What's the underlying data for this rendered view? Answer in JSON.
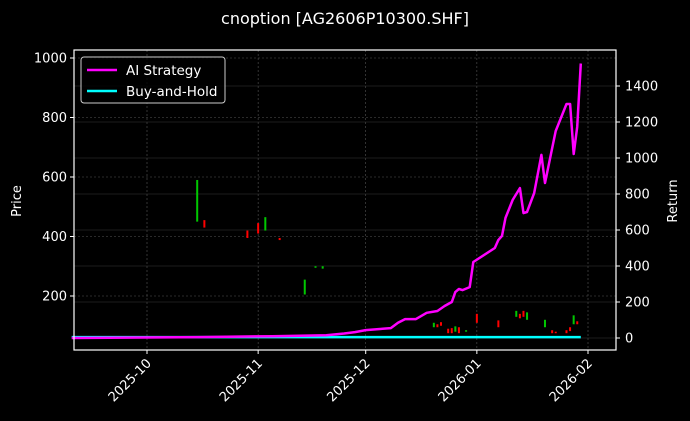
{
  "figure": {
    "title": "cnoption [AG2606P10300.SHF]",
    "background": "#000000"
  },
  "chart_data": {
    "type": "line",
    "title": "cnoption [AG2606P10300.SHF]",
    "xlabel": "",
    "ylabel": "Price",
    "ylabel_right": "Return",
    "grid": true,
    "legend_position": "upper left",
    "x_ticks": [
      "2025-10",
      "2025-11",
      "2025-12",
      "2026-01",
      "2026-02"
    ],
    "y_ticks_left": [
      200,
      400,
      600,
      800,
      1000
    ],
    "y_ticks_right": [
      0,
      200,
      400,
      600,
      800,
      1000,
      1200,
      1400
    ],
    "ylim_left": [
      32,
      1024
    ],
    "ylim_right": [
      -70,
      1600
    ],
    "colors": {
      "ai_strategy": "#ff00ff",
      "buy_and_hold": "#00ffff",
      "up_candle": "#00c800",
      "down_candle": "#ff0000",
      "grid": "#555555",
      "axes": "#ffffff"
    },
    "legend": [
      {
        "label": "AI Strategy",
        "color": "#ff00ff"
      },
      {
        "label": "Buy-and-Hold",
        "color": "#00ffff"
      }
    ],
    "series": [
      {
        "name": "AI Strategy",
        "axis": "right",
        "x": [
          "2025-09-10",
          "2025-10-15",
          "2025-11-05",
          "2025-11-20",
          "2025-11-25",
          "2025-11-28",
          "2025-12-01",
          "2025-12-05",
          "2025-12-08",
          "2025-12-10",
          "2025-12-12",
          "2025-12-15",
          "2025-12-18",
          "2025-12-21",
          "2025-12-23",
          "2025-12-25",
          "2025-12-26",
          "2025-12-27",
          "2025-12-28",
          "2025-12-30",
          "2025-12-31",
          "2026-01-06",
          "2026-01-07",
          "2026-01-08",
          "2026-01-09",
          "2026-01-11",
          "2026-01-13",
          "2026-01-14",
          "2026-01-15",
          "2026-01-17",
          "2026-01-19",
          "2026-01-20",
          "2026-01-23",
          "2026-01-26",
          "2026-01-27",
          "2026-01-28",
          "2026-01-29",
          "2026-01-30"
        ],
        "values": [
          0,
          5,
          10,
          15,
          25,
          33,
          44,
          50,
          55,
          85,
          105,
          105,
          140,
          150,
          178,
          200,
          255,
          272,
          266,
          283,
          422,
          500,
          545,
          567,
          667,
          767,
          833,
          694,
          700,
          806,
          1017,
          861,
          1150,
          1300,
          1300,
          1022,
          1172,
          1525
        ]
      },
      {
        "name": "Buy-and-Hold",
        "axis": "right",
        "x": [
          "2025-09-10",
          "2026-01-30"
        ],
        "values": [
          5,
          5
        ]
      }
    ],
    "candles": [
      {
        "date": "2025-10-15",
        "open": 450,
        "close": 590,
        "dir": "up"
      },
      {
        "date": "2025-10-17",
        "open": 455,
        "close": 430,
        "dir": "down"
      },
      {
        "date": "2025-10-29",
        "open": 420,
        "close": 395,
        "dir": "down"
      },
      {
        "date": "2025-11-01",
        "open": 445,
        "close": 410,
        "dir": "down"
      },
      {
        "date": "2025-11-03",
        "open": 420,
        "close": 465,
        "dir": "up"
      },
      {
        "date": "2025-11-07",
        "open": 395,
        "close": 388,
        "dir": "down"
      },
      {
        "date": "2025-11-14",
        "open": 205,
        "close": 255,
        "dir": "up"
      },
      {
        "date": "2025-11-17",
        "open": 295,
        "close": 300,
        "dir": "up"
      },
      {
        "date": "2025-11-19",
        "open": 292,
        "close": 300,
        "dir": "up"
      },
      {
        "date": "2025-12-20",
        "open": 95,
        "close": 110,
        "dir": "up"
      },
      {
        "date": "2025-12-21",
        "open": 105,
        "close": 95,
        "dir": "down"
      },
      {
        "date": "2025-12-22",
        "open": 112,
        "close": 100,
        "dir": "down"
      },
      {
        "date": "2025-12-24",
        "open": 90,
        "close": 75,
        "dir": "down"
      },
      {
        "date": "2025-12-25",
        "open": 92,
        "close": 75,
        "dir": "down"
      },
      {
        "date": "2025-12-26",
        "open": 80,
        "close": 98,
        "dir": "up"
      },
      {
        "date": "2025-12-27",
        "open": 95,
        "close": 75,
        "dir": "down"
      },
      {
        "date": "2025-12-29",
        "open": 80,
        "close": 85,
        "dir": "up"
      },
      {
        "date": "2026-01-01",
        "open": 140,
        "close": 110,
        "dir": "down"
      },
      {
        "date": "2026-01-07",
        "open": 118,
        "close": 95,
        "dir": "down"
      },
      {
        "date": "2026-01-12",
        "open": 130,
        "close": 150,
        "dir": "up"
      },
      {
        "date": "2026-01-13",
        "open": 140,
        "close": 125,
        "dir": "down"
      },
      {
        "date": "2026-01-14",
        "open": 150,
        "close": 130,
        "dir": "down"
      },
      {
        "date": "2026-01-15",
        "open": 120,
        "close": 145,
        "dir": "up"
      },
      {
        "date": "2026-01-20",
        "open": 95,
        "close": 120,
        "dir": "up"
      },
      {
        "date": "2026-01-22",
        "open": 85,
        "close": 75,
        "dir": "down"
      },
      {
        "date": "2026-01-23",
        "open": 80,
        "close": 75,
        "dir": "down"
      },
      {
        "date": "2026-01-26",
        "open": 85,
        "close": 75,
        "dir": "down"
      },
      {
        "date": "2026-01-27",
        "open": 95,
        "close": 82,
        "dir": "down"
      },
      {
        "date": "2026-01-28",
        "open": 105,
        "close": 135,
        "dir": "up"
      },
      {
        "date": "2026-01-29",
        "open": 115,
        "close": 105,
        "dir": "down"
      }
    ]
  }
}
